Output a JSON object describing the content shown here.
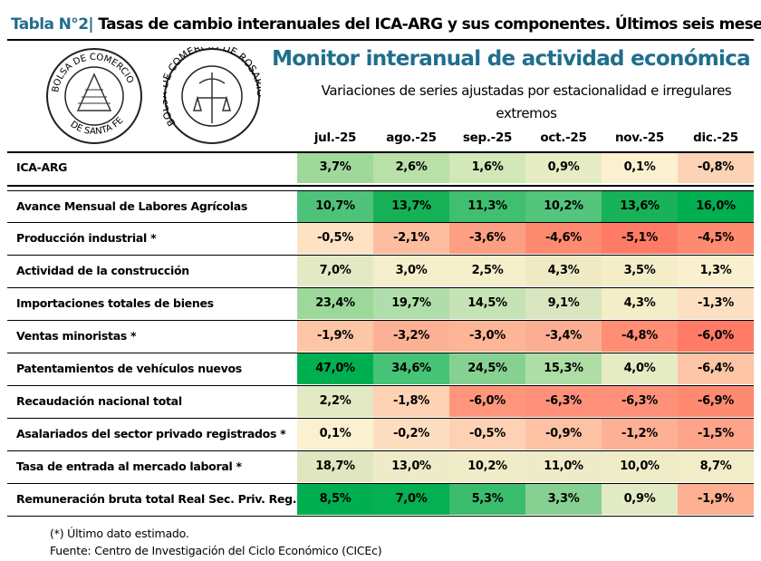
{
  "header": {
    "label": "Tabla N°2",
    "separator": "|",
    "title": "Tasas de cambio interanuales del ICA-ARG y sus componentes. Últimos seis meses."
  },
  "logos": [
    {
      "name": "Bolsa de Comercio de Santa Fe",
      "text_top": "BOLSA DE COMERCIO",
      "text_bottom": "DE SANTA FE"
    },
    {
      "name": "Bolsa de Comercio de Rosario",
      "text": "BOLSA DE COMERCIO DE ROSARIO"
    }
  ],
  "monitor": {
    "title": "Monitor interanual de actividad económica",
    "subtitle_line1": "Variaciones de series ajustadas por estacionalidad e irregulares",
    "subtitle_line2": "extremos"
  },
  "columns": [
    "jul.-25",
    "ago.-25",
    "sep.-25",
    "oct.-25",
    "nov.-25",
    "dic.-25"
  ],
  "rows": [
    {
      "label": "ICA-ARG",
      "values": [
        "3,7%",
        "2,6%",
        "1,6%",
        "0,9%",
        "0,1%",
        "-0,8%"
      ],
      "colors": [
        "#9fd89a",
        "#b8e0a8",
        "#d2e8b8",
        "#e6ecc4",
        "#fbf1d0",
        "#fcd3b4"
      ]
    },
    {
      "label": "Avance Mensual de Labores Agrícolas",
      "values": [
        "10,7%",
        "13,7%",
        "11,3%",
        "10,2%",
        "13,6%",
        "16,0%"
      ],
      "colors": [
        "#4fc27a",
        "#16b057",
        "#3fbf6f",
        "#53c57c",
        "#17b158",
        "#00b050"
      ]
    },
    {
      "label": "Producción industrial *",
      "values": [
        "-0,5%",
        "-2,1%",
        "-3,6%",
        "-4,6%",
        "-5,1%",
        "-4,5%"
      ],
      "colors": [
        "#fde2c4",
        "#fdbd9f",
        "#fd9f82",
        "#fe8a6f",
        "#ff7b65",
        "#fe8a70"
      ]
    },
    {
      "label": "Actividad de la construcción",
      "values": [
        "7,0%",
        "3,0%",
        "2,5%",
        "4,3%",
        "3,5%",
        "1,3%"
      ],
      "colors": [
        "#e3e9c4",
        "#f5eecb",
        "#f6efcc",
        "#efeac4",
        "#f3edc8",
        "#faf0cf"
      ]
    },
    {
      "label": "Importaciones totales de bienes",
      "values": [
        "23,4%",
        "19,7%",
        "14,5%",
        "9,1%",
        "4,3%",
        "-1,3%"
      ],
      "colors": [
        "#9dd89b",
        "#b0deaa",
        "#c6e3b5",
        "#d9e6bf",
        "#f3edc8",
        "#fde0c2"
      ]
    },
    {
      "label": "Ventas minoristas *",
      "values": [
        "-1,9%",
        "-3,2%",
        "-3,0%",
        "-3,4%",
        "-4,8%",
        "-6,0%"
      ],
      "colors": [
        "#fdc6a6",
        "#fdb194",
        "#fdb598",
        "#fcae92",
        "#ff8e75",
        "#ff7b65"
      ]
    },
    {
      "label": "Patentamientos de vehículos nuevos",
      "values": [
        "47,0%",
        "34,6%",
        "24,5%",
        "15,3%",
        "4,0%",
        "-6,4%"
      ],
      "colors": [
        "#00b050",
        "#47c377",
        "#86d191",
        "#aedda5",
        "#e6ebc4",
        "#fdc4a5"
      ]
    },
    {
      "label": "Recaudación nacional total",
      "values": [
        "2,2%",
        "-1,8%",
        "-6,0%",
        "-6,3%",
        "-6,3%",
        "-6,9%"
      ],
      "colors": [
        "#e3e9c3",
        "#fdd2b5",
        "#ff967b",
        "#ff917a",
        "#ff917a",
        "#ff8a72"
      ]
    },
    {
      "label": "Asalariados del sector privado registrados *",
      "values": [
        "0,1%",
        "-0,2%",
        "-0,5%",
        "-0,9%",
        "-1,2%",
        "-1,5%"
      ],
      "colors": [
        "#fbf1d0",
        "#fedec0",
        "#fdd2b4",
        "#fdc2a4",
        "#fdb094",
        "#fea48a"
      ]
    },
    {
      "label": "Tasa de entrada al mercado laboral *",
      "values": [
        "18,7%",
        "13,0%",
        "10,2%",
        "11,0%",
        "10,0%",
        "8,7%"
      ],
      "colors": [
        "#dfe6c0",
        "#eeecc8",
        "#f0ecc8",
        "#eeecc8",
        "#f0ecc8",
        "#f2edc8"
      ]
    },
    {
      "label": "Remuneración bruta total Real Sec. Priv. Reg.*",
      "values": [
        "8,5%",
        "7,0%",
        "5,3%",
        "3,3%",
        "0,9%",
        "-1,9%"
      ],
      "colors": [
        "#00b050",
        "#05b052",
        "#3abd6c",
        "#86d191",
        "#e3ebc4",
        "#fdb092"
      ]
    }
  ],
  "footnotes": {
    "note": "(*) Último dato estimado.",
    "source": "Fuente: Centro de Investigación del Ciclo Económico (CICEc)"
  }
}
